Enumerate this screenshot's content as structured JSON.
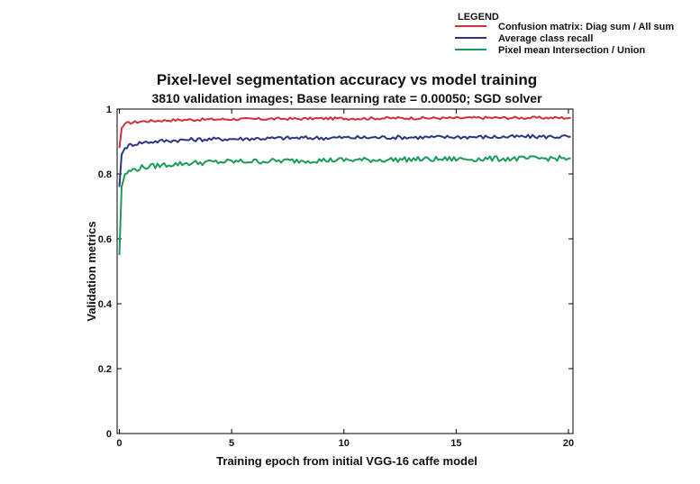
{
  "chart_data": {
    "type": "line",
    "title": "Pixel-level segmentation accuracy vs model training",
    "subtitle": "3810 validation images; Base learning rate = 0.00050; SGD solver",
    "xlabel": "Training epoch from initial VGG-16 caffe model",
    "ylabel": "Validation metrics",
    "xlim": [
      -0.1,
      20.2
    ],
    "ylim": [
      0,
      1
    ],
    "xticks": [
      0,
      5,
      10,
      15,
      20
    ],
    "yticks": [
      0,
      0.2,
      0.4,
      0.6,
      0.8,
      1
    ],
    "ytick_labels": [
      "0",
      "0.2",
      "0.4",
      "0.6",
      "0.8",
      "1"
    ],
    "legend": {
      "title": "LEGEND",
      "position": "top-right"
    },
    "series": [
      {
        "name": "Confusion matrix: Diag sum / All sum",
        "color": "#d0303a",
        "x": [
          0,
          0.1,
          0.25,
          0.5,
          1,
          2,
          3,
          4,
          5,
          6,
          7,
          8,
          9,
          10,
          11,
          12,
          13,
          14,
          15,
          16,
          17,
          18,
          19,
          20.1
        ],
        "y": [
          0.88,
          0.94,
          0.955,
          0.958,
          0.962,
          0.965,
          0.967,
          0.968,
          0.969,
          0.969,
          0.97,
          0.97,
          0.971,
          0.971,
          0.971,
          0.972,
          0.972,
          0.972,
          0.972,
          0.973,
          0.973,
          0.973,
          0.973,
          0.973
        ]
      },
      {
        "name": "Average class recall",
        "color": "#2e3584",
        "x": [
          0,
          0.1,
          0.25,
          0.5,
          1,
          2,
          3,
          4,
          5,
          6,
          7,
          8,
          9,
          10,
          11,
          12,
          13,
          14,
          15,
          16,
          17,
          18,
          19,
          20.1
        ],
        "y": [
          0.76,
          0.86,
          0.88,
          0.89,
          0.897,
          0.902,
          0.905,
          0.907,
          0.908,
          0.909,
          0.91,
          0.911,
          0.911,
          0.912,
          0.912,
          0.913,
          0.913,
          0.913,
          0.914,
          0.914,
          0.914,
          0.915,
          0.915,
          0.915
        ]
      },
      {
        "name": "Pixel mean Intersection / Union",
        "color": "#1c9a5a",
        "x": [
          0,
          0.1,
          0.25,
          0.5,
          1,
          2,
          3,
          4,
          5,
          6,
          7,
          8,
          9,
          10,
          11,
          12,
          13,
          14,
          15,
          16,
          17,
          18,
          19,
          20.1
        ],
        "y": [
          0.55,
          0.76,
          0.8,
          0.81,
          0.82,
          0.828,
          0.833,
          0.836,
          0.838,
          0.839,
          0.84,
          0.841,
          0.842,
          0.843,
          0.843,
          0.844,
          0.845,
          0.845,
          0.846,
          0.846,
          0.847,
          0.847,
          0.848,
          0.848
        ]
      }
    ]
  }
}
